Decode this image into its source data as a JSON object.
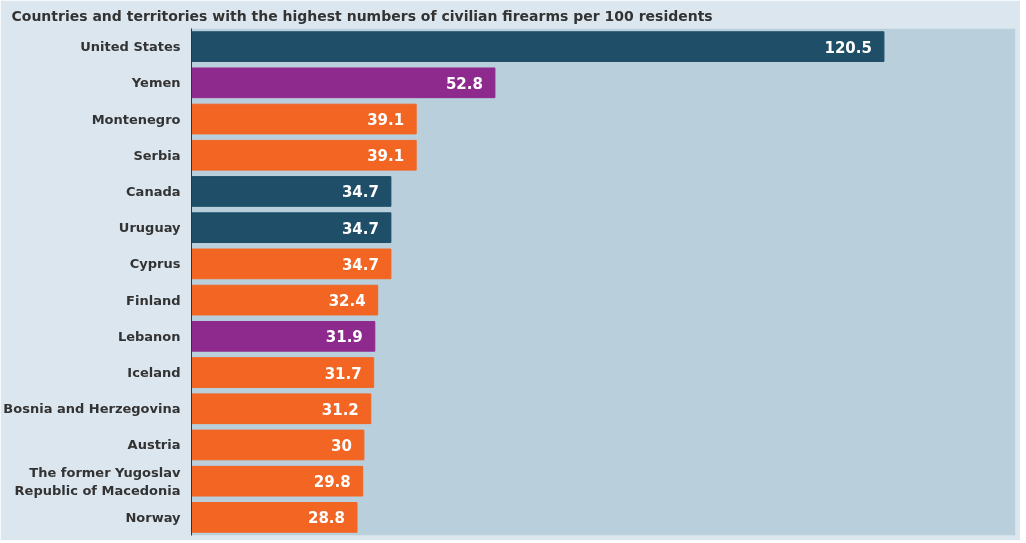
{
  "chart_data": {
    "type": "bar",
    "orientation": "horizontal",
    "title": "Countries and territories with the highest numbers of civilian firearms per 100 residents",
    "categories": [
      "United States",
      "Yemen",
      "Montenegro",
      "Serbia",
      "Canada",
      "Uruguay",
      "Cyprus",
      "Finland",
      "Lebanon",
      "Iceland",
      "Bosnia and Herzegovina",
      "Austria",
      "The former Yugoslav Republic of Macedonia",
      "Norway"
    ],
    "values": [
      120.5,
      52.8,
      39.1,
      39.1,
      34.7,
      34.7,
      34.7,
      32.4,
      31.9,
      31.7,
      31.2,
      30,
      29.8,
      28.8
    ],
    "colors": [
      "#1f4e68",
      "#8e2a8e",
      "#f26522",
      "#f26522",
      "#1f4e68",
      "#1f4e68",
      "#f26522",
      "#f26522",
      "#8e2a8e",
      "#f26522",
      "#f26522",
      "#f26522",
      "#f26522",
      "#f26522"
    ],
    "data_labels": true,
    "grid": false
  }
}
